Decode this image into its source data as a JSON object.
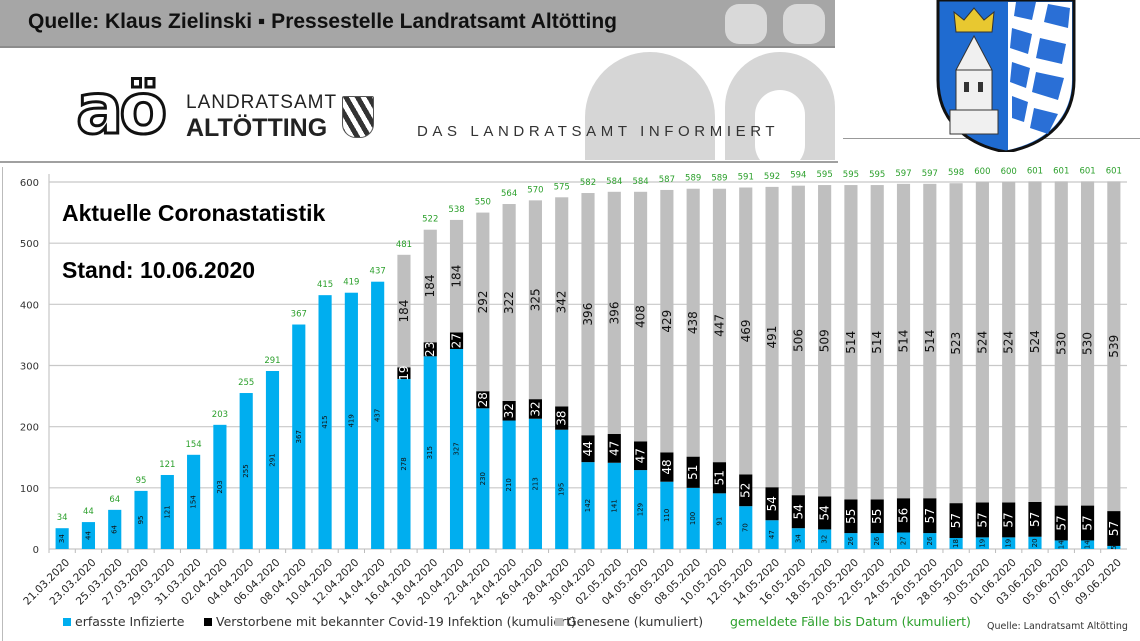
{
  "header": {
    "title": "Quelle: Klaus Zielinski ▪ Pressestelle Landratsamt Altötting",
    "logo_mark": "aö",
    "logo_line1": "LANDRATSAMT",
    "logo_line2": "ALTÖTTING",
    "tagline": "DAS LANDRATSAMT INFORMIERT",
    "crest_icon": "coat-of-arms-altoetting"
  },
  "overlay": {
    "heading": "Aktuelle Coronastatistik",
    "stand": "Stand: 10.06.2020"
  },
  "footer": {
    "source": "Quelle: Landratsamt Altötting"
  },
  "colors": {
    "infected": "#00aeef",
    "deaths": "#000000",
    "recovered": "#bfbfbf",
    "total_label": "#2ca02c"
  },
  "chart_data": {
    "type": "bar",
    "stacked": true,
    "title": "Aktuelle Coronastatistik",
    "subtitle": "Stand: 10.06.2020",
    "xlabel": "",
    "ylabel": "",
    "ylim": [
      0,
      600
    ],
    "yticks": [
      0,
      100,
      200,
      300,
      400,
      500,
      600
    ],
    "grid": true,
    "legend_position": "bottom",
    "categories": [
      "21.03.2020",
      "23.03.2020",
      "25.03.2020",
      "27.03.2020",
      "29.03.2020",
      "31.03.2020",
      "02.04.2020",
      "04.04.2020",
      "06.04.2020",
      "08.04.2020",
      "10.04.2020",
      "12.04.2020",
      "14.04.2020",
      "16.04.2020",
      "18.04.2020",
      "20.04.2020",
      "22.04.2020",
      "24.04.2020",
      "26.04.2020",
      "28.04.2020",
      "30.04.2020",
      "02.05.2020",
      "04.05.2020",
      "06.05.2020",
      "08.05.2020",
      "10.05.2020",
      "12.05.2020",
      "14.05.2020",
      "16.05.2020",
      "18.05.2020",
      "20.05.2020",
      "22.05.2020",
      "24.05.2020",
      "26.05.2020",
      "28.05.2020",
      "30.05.2020",
      "01.06.2020",
      "03.06.2020",
      "05.06.2020",
      "07.06.2020",
      "09.06.2020"
    ],
    "series": [
      {
        "name": "erfasste Infizierte",
        "color": "#00aeef",
        "values": [
          34,
          44,
          64,
          95,
          121,
          154,
          203,
          255,
          291,
          367,
          415,
          419,
          437,
          278,
          315,
          327,
          230,
          210,
          213,
          195,
          142,
          141,
          129,
          110,
          100,
          91,
          70,
          47,
          34,
          32,
          26,
          26,
          27,
          26,
          18,
          19,
          19,
          20,
          14,
          14,
          5
        ]
      },
      {
        "name": "Verstorbene mit bekannter Covid-19 Infektion (kumuliert)",
        "color": "#000000",
        "values": [
          0,
          0,
          0,
          0,
          0,
          0,
          0,
          0,
          0,
          0,
          0,
          0,
          0,
          19,
          23,
          27,
          28,
          32,
          32,
          38,
          44,
          47,
          47,
          48,
          51,
          51,
          52,
          54,
          54,
          54,
          55,
          55,
          56,
          57,
          57,
          57,
          57,
          57,
          57,
          57,
          57
        ]
      },
      {
        "name": "Genesene (kumuliert)",
        "color": "#bfbfbf",
        "values": [
          0,
          0,
          0,
          0,
          0,
          0,
          0,
          0,
          0,
          0,
          0,
          0,
          0,
          184,
          184,
          184,
          292,
          322,
          325,
          342,
          396,
          396,
          408,
          429,
          438,
          447,
          469,
          491,
          506,
          509,
          514,
          514,
          514,
          514,
          523,
          524,
          524,
          524,
          530,
          530,
          539
        ]
      }
    ],
    "totals_series": {
      "name": "gemeldete Fälle bis Datum (kumuliert)",
      "color": "#2ca02c",
      "values": [
        34,
        44,
        64,
        95,
        121,
        154,
        203,
        255,
        291,
        367,
        415,
        419,
        437,
        481,
        522,
        538,
        550,
        564,
        570,
        575,
        582,
        584,
        584,
        587,
        589,
        589,
        591,
        592,
        594,
        595,
        595,
        595,
        597,
        597,
        598,
        600,
        600,
        601,
        601,
        601,
        601
      ]
    }
  }
}
